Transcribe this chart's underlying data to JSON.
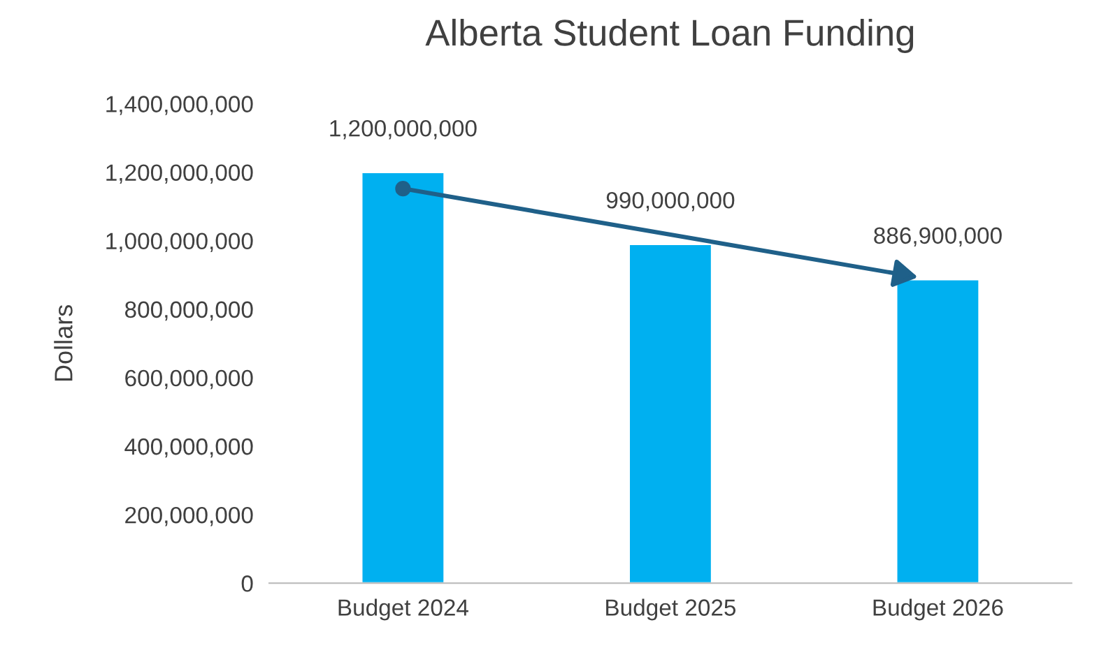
{
  "chart_data": {
    "type": "bar",
    "title": "Alberta Student Loan Funding",
    "ylabel": "Dollars",
    "categories": [
      "Budget 2024",
      "Budget 2025",
      "Budget 2026"
    ],
    "values": [
      1200000000,
      990000000,
      886900000
    ],
    "color": "#00b0f0",
    "value_labels": [
      "1,200,000,000",
      "990,000,000",
      "886,900,000"
    ],
    "ylim": [
      0,
      1400000000
    ],
    "yticks": [
      {
        "value": 0,
        "label": "0"
      },
      {
        "value": 200000000,
        "label": "200,000,000"
      },
      {
        "value": 400000000,
        "label": "400,000,000"
      },
      {
        "value": 600000000,
        "label": "600,000,000"
      },
      {
        "value": 800000000,
        "label": "800,000,000"
      },
      {
        "value": 1000000000,
        "label": "1,000,000,000"
      },
      {
        "value": 1200000000,
        "label": "1,200,000,000"
      },
      {
        "value": 1400000000,
        "label": "1,400,000,000"
      }
    ],
    "grid": false
  }
}
